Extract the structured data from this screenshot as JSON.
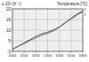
{
  "chart_data": {
    "type": "line",
    "y_label": "α·10⁶ [K⁻¹]",
    "x_label": "Temperature [°C]",
    "x": [
      1000,
      1050,
      1100,
      1150,
      1200,
      1250,
      1300,
      1350,
      1400,
      1450,
      1500,
      1550,
      1600
    ],
    "series": [
      {
        "name": "1",
        "color": "#333333",
        "values": [
          1,
          2.5,
          4,
          5.5,
          7,
          8.2,
          9,
          10,
          11.5,
          13.5,
          15.5,
          17.5,
          19
        ]
      },
      {
        "name": "2",
        "color": "#777777",
        "values": [
          1,
          2.3,
          3.7,
          5,
          6.3,
          7.4,
          8.4,
          9.6,
          11.3,
          13.3,
          15.2,
          17,
          18.5
        ]
      }
    ],
    "xlim": [
      1000,
      1600
    ],
    "xticks": [
      1000,
      1100,
      1200,
      1300,
      1400,
      1500,
      1600
    ],
    "ylim": [
      0,
      20
    ],
    "yticks": [
      0,
      5,
      10,
      15,
      20
    ],
    "grid": true
  }
}
